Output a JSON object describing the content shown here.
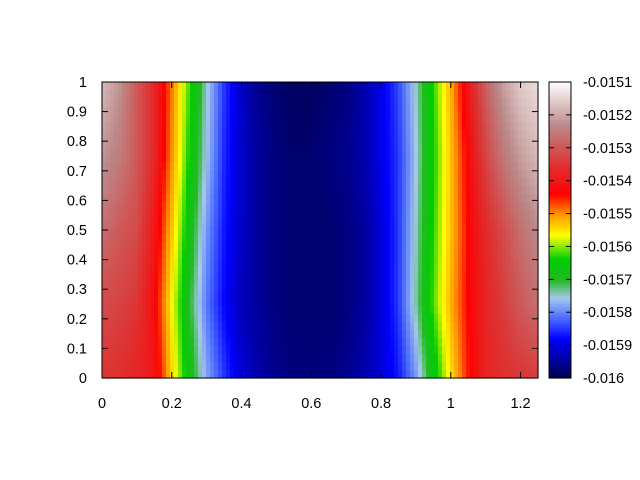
{
  "chart_data": {
    "type": "heatmap",
    "title": "",
    "xlabel": "",
    "ylabel": "",
    "xlim": [
      0,
      1.25
    ],
    "ylim": [
      0,
      1
    ],
    "x_ticks": [
      "0",
      "0.2",
      "0.4",
      "0.6",
      "0.8",
      "1",
      "1.2"
    ],
    "y_ticks": [
      "0",
      "0.1",
      "0.2",
      "0.3",
      "0.4",
      "0.5",
      "0.6",
      "0.7",
      "0.8",
      "0.9",
      "1"
    ],
    "colorbar": {
      "min": -0.016,
      "max": -0.0151,
      "ticks": [
        "-0.016",
        "-0.0159",
        "-0.0158",
        "-0.0157",
        "-0.0156",
        "-0.0155",
        "-0.0154",
        "-0.0153",
        "-0.0152",
        "-0.0151"
      ],
      "palette": [
        {
          "v": 0.0,
          "color": "#000050"
        },
        {
          "v": 0.13,
          "color": "#0000ff"
        },
        {
          "v": 0.2,
          "color": "#4a6aff"
        },
        {
          "v": 0.27,
          "color": "#a6c8ea"
        },
        {
          "v": 0.33,
          "color": "#22bb22"
        },
        {
          "v": 0.4,
          "color": "#00cc00"
        },
        {
          "v": 0.48,
          "color": "#ffff00"
        },
        {
          "v": 0.55,
          "color": "#ff9900"
        },
        {
          "v": 0.62,
          "color": "#ff0000"
        },
        {
          "v": 0.72,
          "color": "#dd3333"
        },
        {
          "v": 0.85,
          "color": "#bb8888"
        },
        {
          "v": 1.0,
          "color": "#ffffff"
        }
      ]
    },
    "field": {
      "x": [
        0,
        0.05,
        0.1,
        0.15,
        0.2,
        0.25,
        0.3,
        0.35,
        0.4,
        0.45,
        0.5,
        0.55,
        0.6,
        0.65,
        0.7,
        0.75,
        0.8,
        0.85,
        0.9,
        0.95,
        1.0,
        1.05,
        1.1,
        1.15,
        1.2,
        1.25
      ],
      "y": [
        0,
        0.25,
        0.5,
        0.75,
        1
      ],
      "values": [
        [
          -0.01535,
          -0.01536,
          -0.01538,
          -0.0154,
          -0.01554,
          -0.01567,
          -0.01578,
          -0.01585,
          -0.01591,
          -0.01594,
          -0.01596,
          -0.01597,
          -0.01597,
          -0.01597,
          -0.01596,
          -0.01594,
          -0.01591,
          -0.01587,
          -0.01579,
          -0.01567,
          -0.01555,
          -0.01545,
          -0.01538,
          -0.01536,
          -0.01535,
          -0.01534
        ],
        [
          -0.01532,
          -0.01533,
          -0.01535,
          -0.01542,
          -0.01556,
          -0.0157,
          -0.01581,
          -0.01588,
          -0.01593,
          -0.01595,
          -0.01597,
          -0.01598,
          -0.01598,
          -0.01598,
          -0.01597,
          -0.01595,
          -0.01591,
          -0.01585,
          -0.01574,
          -0.01562,
          -0.01552,
          -0.01544,
          -0.01538,
          -0.01534,
          -0.0153,
          -0.01527
        ],
        [
          -0.01527,
          -0.0153,
          -0.01532,
          -0.0154,
          -0.01553,
          -0.01567,
          -0.01579,
          -0.01587,
          -0.01592,
          -0.01595,
          -0.01597,
          -0.01598,
          -0.01598,
          -0.01598,
          -0.01597,
          -0.01595,
          -0.01591,
          -0.01585,
          -0.01575,
          -0.01563,
          -0.01553,
          -0.01544,
          -0.01537,
          -0.01532,
          -0.01527,
          -0.01523
        ],
        [
          -0.01522,
          -0.01525,
          -0.0153,
          -0.01537,
          -0.0155,
          -0.01564,
          -0.01576,
          -0.01586,
          -0.01592,
          -0.01595,
          -0.01597,
          -0.01598,
          -0.01598,
          -0.01597,
          -0.01596,
          -0.01594,
          -0.0159,
          -0.01585,
          -0.01576,
          -0.01564,
          -0.01553,
          -0.01543,
          -0.01533,
          -0.01526,
          -0.01521,
          -0.01518
        ],
        [
          -0.01518,
          -0.01522,
          -0.0153,
          -0.01537,
          -0.01549,
          -0.01562,
          -0.01575,
          -0.01585,
          -0.01592,
          -0.01596,
          -0.01598,
          -0.01599,
          -0.01599,
          -0.01598,
          -0.01597,
          -0.01594,
          -0.0159,
          -0.01584,
          -0.01575,
          -0.01563,
          -0.01552,
          -0.0154,
          -0.01529,
          -0.01521,
          -0.01516,
          -0.01514
        ]
      ]
    }
  }
}
